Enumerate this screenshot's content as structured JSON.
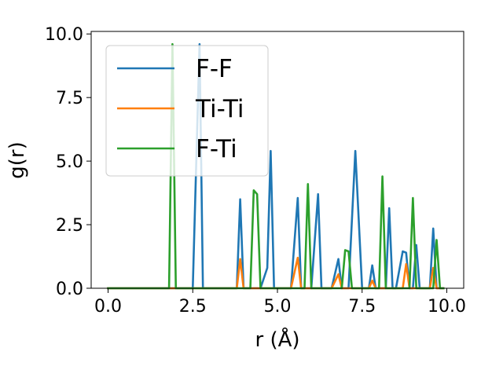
{
  "chart_data": {
    "type": "line",
    "title": "",
    "xlabel": "r (Å)",
    "ylabel": "g(r)",
    "xlim": [
      -0.5,
      10.5
    ],
    "ylim": [
      0.0,
      10.1
    ],
    "xticks": [
      0.0,
      2.5,
      5.0,
      7.5,
      10.0
    ],
    "xtick_labels": [
      "0.0",
      "2.5",
      "5.0",
      "7.5",
      "10.0"
    ],
    "yticks": [
      0.0,
      2.5,
      5.0,
      7.5,
      10.0
    ],
    "ytick_labels": [
      "0.0",
      "2.5",
      "5.0",
      "7.5",
      "10.0"
    ],
    "grid": false,
    "legend_position": "upper-left",
    "series": [
      {
        "name": "F-F",
        "color": "#1f77b4",
        "x": [
          0.0,
          2.5,
          2.7,
          2.8,
          3.8,
          3.9,
          4.0,
          4.5,
          4.7,
          4.8,
          4.9,
          5.4,
          5.6,
          5.7,
          6.0,
          6.2,
          6.3,
          6.6,
          6.8,
          6.9,
          7.1,
          7.3,
          7.5,
          7.7,
          7.8,
          7.9,
          8.2,
          8.3,
          8.4,
          8.5,
          8.7,
          8.8,
          8.9,
          9.0,
          9.1,
          9.2,
          9.5,
          9.6,
          9.7,
          9.9
        ],
        "y": [
          0.0,
          0.0,
          9.6,
          0.0,
          0.0,
          3.5,
          0.0,
          0.0,
          0.8,
          5.4,
          0.0,
          0.0,
          3.55,
          0.0,
          0.0,
          3.7,
          0.0,
          0.0,
          1.15,
          0.0,
          0.0,
          5.4,
          0.0,
          0.0,
          0.9,
          0.0,
          0.0,
          3.15,
          0.0,
          0.0,
          1.45,
          1.4,
          0.0,
          0.0,
          1.7,
          0.0,
          0.0,
          2.35,
          0.0,
          0.0
        ]
      },
      {
        "name": "Ti-Ti",
        "color": "#ff7f0e",
        "x": [
          0.0,
          3.8,
          3.9,
          4.0,
          5.4,
          5.6,
          5.7,
          6.6,
          6.8,
          6.9,
          7.7,
          7.8,
          7.9,
          8.7,
          8.8,
          8.9,
          9.5,
          9.6,
          9.7,
          9.9
        ],
        "y": [
          0.0,
          0.0,
          1.15,
          0.0,
          0.0,
          1.2,
          0.0,
          0.0,
          0.55,
          0.0,
          0.0,
          0.3,
          0.0,
          0.0,
          0.95,
          0.0,
          0.0,
          0.8,
          0.0,
          0.0
        ]
      },
      {
        "name": "F-Ti",
        "color": "#2ca02c",
        "x": [
          0.0,
          1.8,
          1.9,
          2.0,
          4.2,
          4.3,
          4.4,
          4.5,
          5.8,
          5.9,
          6.0,
          6.9,
          7.0,
          7.1,
          7.2,
          8.0,
          8.1,
          8.2,
          8.9,
          9.0,
          9.1,
          9.6,
          9.7,
          9.8,
          9.9
        ],
        "y": [
          0.0,
          0.0,
          9.6,
          0.0,
          0.0,
          3.85,
          3.7,
          0.0,
          0.0,
          4.1,
          0.0,
          0.0,
          1.5,
          1.45,
          0.0,
          0.0,
          4.4,
          0.0,
          0.0,
          3.55,
          0.0,
          0.0,
          1.9,
          0.0,
          0.0
        ]
      }
    ]
  }
}
